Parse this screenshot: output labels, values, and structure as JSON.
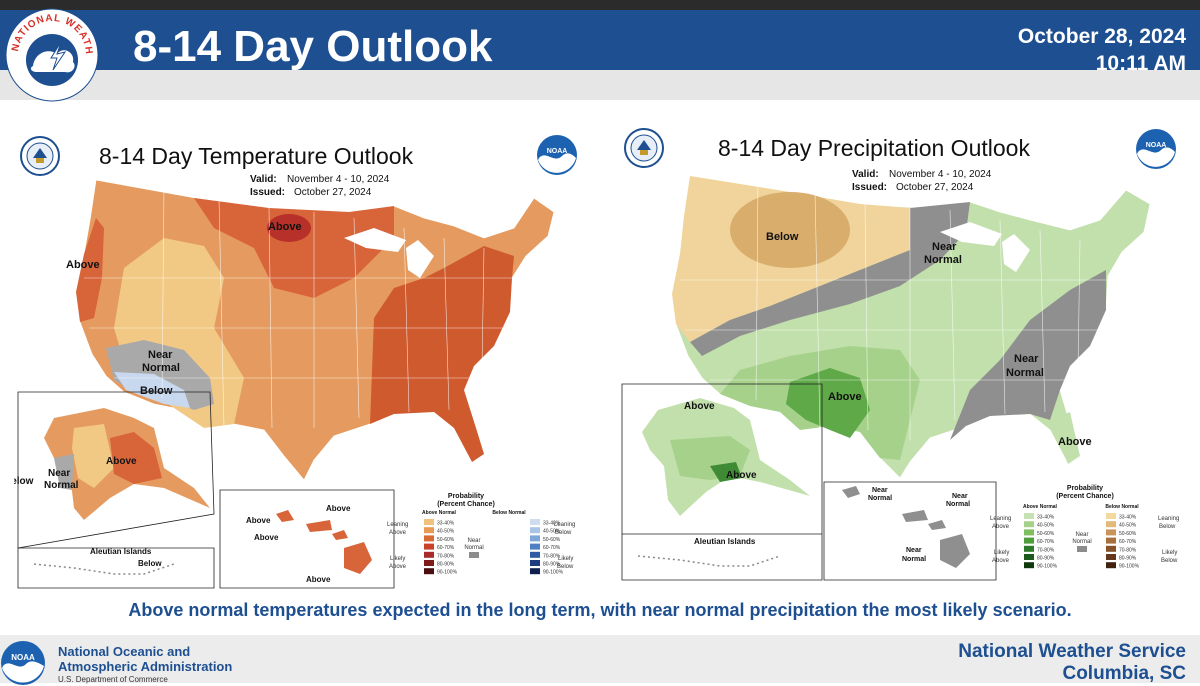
{
  "header": {
    "title": "8-14 Day Outlook",
    "date": "October 28, 2024",
    "time": "10:11 AM",
    "logo_icon": "nws-logo-icon",
    "logo_text": "NATIONAL WEATHER SERVICE"
  },
  "temperature_map": {
    "title": "8-14 Day Temperature Outlook",
    "valid_label": "Valid:",
    "valid_value": "November 4 - 10, 2024",
    "issued_label": "Issued:",
    "issued_value": "October 27, 2024",
    "labels": {
      "above_main": "Above",
      "above_west": "Above",
      "near": "Near",
      "normal": "Normal",
      "below": "Below",
      "ak_above": "Above",
      "ak_near": "Near",
      "ak_normal": "Normal",
      "ak_below": "Below",
      "aleutian": "Aleutian Islands",
      "aleutian_below": "Below",
      "hi_above1": "Above",
      "hi_above2": "Above",
      "hi_above3": "Above",
      "hi_above4": "Above"
    },
    "legend": {
      "title1": "Probability",
      "title2": "(Percent Chance)",
      "above_header": "Above Normal",
      "below_header": "Below Normal",
      "leaning_above": [
        "Leaning",
        "Above"
      ],
      "likely_above": [
        "Likely",
        "Above"
      ],
      "leaning_below": [
        "Leaning",
        "Below"
      ],
      "likely_below": [
        "Likely",
        "Below"
      ],
      "near": [
        "Near",
        "Normal"
      ],
      "bins": [
        "33-40%",
        "40-50%",
        "50-60%",
        "60-70%",
        "70-80%",
        "80-90%",
        "90-100%"
      ],
      "above_colors": [
        "#f0c27b",
        "#e99a55",
        "#d86a34",
        "#c8422a",
        "#a82a2a",
        "#7e1a1a",
        "#4a0e0e"
      ],
      "below_colors": [
        "#cfdcf0",
        "#a9c4e6",
        "#7fa7da",
        "#4f7fc4",
        "#2e5aa6",
        "#1d3b80",
        "#0e1f50"
      ],
      "near_color": "#8c8c8c"
    }
  },
  "precipitation_map": {
    "title": "8-14 Day Precipitation Outlook",
    "valid_label": "Valid:",
    "valid_value": "November 4 - 10, 2024",
    "issued_label": "Issued:",
    "issued_value": "October 27, 2024",
    "labels": {
      "below": "Below",
      "near1a": "Near",
      "near1b": "Normal",
      "near2a": "Near",
      "near2b": "Normal",
      "above_sw": "Above",
      "above_fl": "Above",
      "ak_above1": "Above",
      "ak_above2": "Above",
      "aleutian": "Aleutian Islands",
      "hi_near1a": "Near",
      "hi_near1b": "Normal",
      "hi_near2a": "Near",
      "hi_near2b": "Normal",
      "hi_near3a": "Near",
      "hi_near3b": "Normal"
    },
    "legend": {
      "title1": "Probability",
      "title2": "(Percent Chance)",
      "above_header": "Above Normal",
      "below_header": "Below Normal",
      "leaning_above": [
        "Leaning",
        "Above"
      ],
      "likely_above": [
        "Likely",
        "Above"
      ],
      "leaning_below": [
        "Leaning",
        "Below"
      ],
      "likely_below": [
        "Likely",
        "Below"
      ],
      "near": [
        "Near",
        "Normal"
      ],
      "bins": [
        "33-40%",
        "40-50%",
        "50-60%",
        "60-70%",
        "70-80%",
        "80-90%",
        "90-100%"
      ],
      "above_colors": [
        "#c6e2b4",
        "#a6d18a",
        "#7fbf5f",
        "#4f9e3c",
        "#2f7a2a",
        "#1d5a1d",
        "#0e3a0e"
      ],
      "below_colors": [
        "#f2d9a0",
        "#e3b878",
        "#c9945a",
        "#a8703c",
        "#86522a",
        "#64381c",
        "#40220e"
      ],
      "near_color": "#8c8c8c"
    }
  },
  "caption": "Above normal temperatures expected in the long term, with near normal precipitation the most likely scenario.",
  "footer": {
    "left_line1": "National Oceanic and",
    "left_line2": "Atmospheric Administration",
    "left_line3": "U.S. Department of Commerce",
    "right_line1": "National Weather Service",
    "right_line2": "Columbia, SC"
  }
}
